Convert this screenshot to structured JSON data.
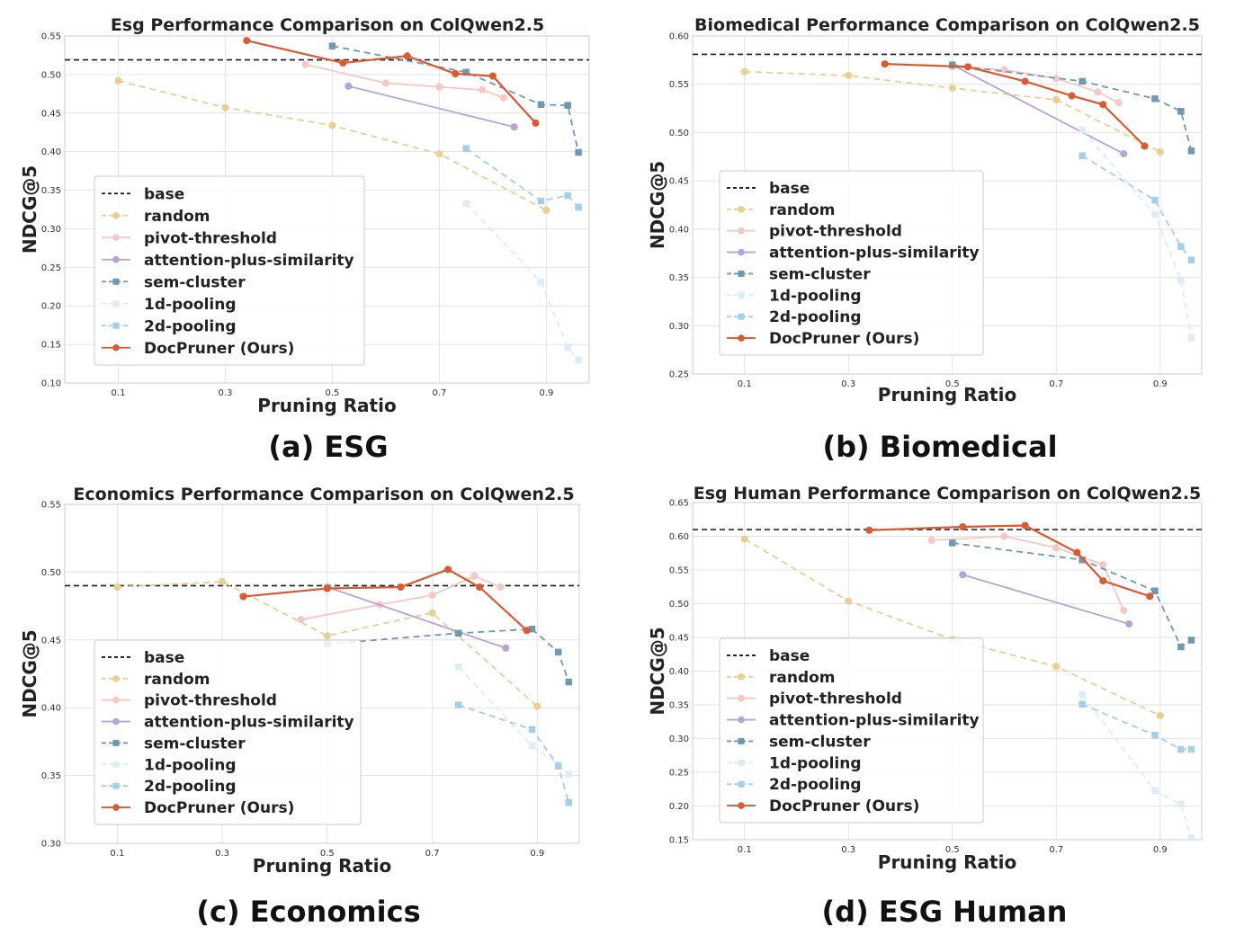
{
  "styles": {
    "base": {
      "color": "#1a1a1a",
      "dash": "6,4",
      "marker": "none"
    },
    "random": {
      "color": "#e8cf94",
      "dash": "7,5",
      "marker": "circle"
    },
    "pivot-threshold": {
      "color": "#f6c7c4",
      "dash": "",
      "marker": "circle"
    },
    "attention-plus-similarity": {
      "color": "#b8a4d4",
      "dash": "",
      "marker": "circle"
    },
    "sem-cluster": {
      "color": "#7098ae",
      "dash": "7,5",
      "marker": "square"
    },
    "1d-pooling": {
      "color": "#dcedf8",
      "dash": "7,5",
      "marker": "square"
    },
    "2d-pooling": {
      "color": "#a5cfe9",
      "dash": "7,5",
      "marker": "square"
    },
    "DocPruner (Ours)": {
      "color": "#d95a33",
      "dash": "",
      "marker": "circle"
    }
  },
  "captions": [
    "(a) ESG",
    "(b) Biomedical",
    "(c) Economics",
    "(d) ESG Human"
  ],
  "chart_data": [
    {
      "type": "line",
      "title": "Esg Performance Comparison on ColQwen2.5",
      "xlabel": "Pruning Ratio",
      "ylabel": "NDCG@5",
      "xlim": [
        0.0,
        0.98
      ],
      "ylim": [
        0.1,
        0.55
      ],
      "xticks": [
        0.1,
        0.3,
        0.5,
        0.7,
        0.9
      ],
      "yticks": [
        0.1,
        0.15,
        0.2,
        0.25,
        0.3,
        0.35,
        0.4,
        0.45,
        0.5,
        0.55
      ],
      "legend": "lower-left",
      "base": 0.519,
      "series": [
        {
          "name": "random",
          "x": [
            0.1,
            0.3,
            0.5,
            0.7,
            0.9
          ],
          "y": [
            0.492,
            0.457,
            0.434,
            0.397,
            0.324
          ]
        },
        {
          "name": "pivot-threshold",
          "x": [
            0.45,
            0.6,
            0.7,
            0.78,
            0.82
          ],
          "y": [
            0.513,
            0.489,
            0.484,
            0.48,
            0.47
          ]
        },
        {
          "name": "attention-plus-similarity",
          "x": [
            0.53,
            0.84
          ],
          "y": [
            0.485,
            0.432
          ]
        },
        {
          "name": "sem-cluster",
          "x": [
            0.5,
            0.75,
            0.89,
            0.94,
            0.96
          ],
          "y": [
            0.537,
            0.503,
            0.461,
            0.46,
            0.399
          ]
        },
        {
          "name": "1d-pooling",
          "x": [
            0.75,
            0.89,
            0.94,
            0.96
          ],
          "y": [
            0.333,
            0.231,
            0.146,
            0.13
          ]
        },
        {
          "name": "2d-pooling",
          "x": [
            0.75,
            0.89,
            0.94,
            0.96
          ],
          "y": [
            0.404,
            0.336,
            0.343,
            0.328
          ]
        },
        {
          "name": "DocPruner (Ours)",
          "x": [
            0.34,
            0.52,
            0.64,
            0.73,
            0.8,
            0.88
          ],
          "y": [
            0.544,
            0.515,
            0.524,
            0.501,
            0.498,
            0.437
          ]
        }
      ]
    },
    {
      "type": "line",
      "title": "Biomedical Performance Comparison on ColQwen2.5",
      "xlabel": "Pruning Ratio",
      "ylabel": "NDCG@5",
      "xlim": [
        0.0,
        0.98
      ],
      "ylim": [
        0.25,
        0.6
      ],
      "xticks": [
        0.1,
        0.3,
        0.5,
        0.7,
        0.9
      ],
      "yticks": [
        0.25,
        0.3,
        0.35,
        0.4,
        0.45,
        0.5,
        0.55,
        0.6
      ],
      "legend": "lower-left",
      "base": 0.581,
      "series": [
        {
          "name": "random",
          "x": [
            0.1,
            0.3,
            0.5,
            0.7,
            0.9
          ],
          "y": [
            0.563,
            0.559,
            0.546,
            0.534,
            0.48
          ]
        },
        {
          "name": "pivot-threshold",
          "x": [
            0.5,
            0.6,
            0.7,
            0.78,
            0.82
          ],
          "y": [
            0.568,
            0.565,
            0.556,
            0.542,
            0.531
          ]
        },
        {
          "name": "attention-plus-similarity",
          "x": [
            0.5,
            0.83
          ],
          "y": [
            0.57,
            0.478
          ]
        },
        {
          "name": "sem-cluster",
          "x": [
            0.5,
            0.75,
            0.89,
            0.94,
            0.96
          ],
          "y": [
            0.57,
            0.553,
            0.535,
            0.522,
            0.481
          ]
        },
        {
          "name": "1d-pooling",
          "x": [
            0.75,
            0.89,
            0.94,
            0.96
          ],
          "y": [
            0.503,
            0.415,
            0.347,
            0.288
          ]
        },
        {
          "name": "2d-pooling",
          "x": [
            0.75,
            0.89,
            0.94,
            0.96
          ],
          "y": [
            0.476,
            0.43,
            0.382,
            0.368
          ]
        },
        {
          "name": "DocPruner (Ours)",
          "x": [
            0.37,
            0.53,
            0.64,
            0.73,
            0.79,
            0.87
          ],
          "y": [
            0.571,
            0.568,
            0.553,
            0.538,
            0.529,
            0.486
          ]
        }
      ]
    },
    {
      "type": "line",
      "title": "Economics Performance Comparison on ColQwen2.5",
      "xlabel": "Pruning Ratio",
      "ylabel": "NDCG@5",
      "xlim": [
        0.0,
        0.98
      ],
      "ylim": [
        0.3,
        0.55
      ],
      "xticks": [
        0.1,
        0.3,
        0.5,
        0.7,
        0.9
      ],
      "yticks": [
        0.3,
        0.35,
        0.4,
        0.45,
        0.5,
        0.55
      ],
      "legend": "lower-left",
      "base": 0.49,
      "series": [
        {
          "name": "random",
          "x": [
            0.1,
            0.3,
            0.5,
            0.7,
            0.9
          ],
          "y": [
            0.489,
            0.493,
            0.453,
            0.47,
            0.401
          ]
        },
        {
          "name": "pivot-threshold",
          "x": [
            0.45,
            0.6,
            0.7,
            0.78,
            0.83
          ],
          "y": [
            0.465,
            0.476,
            0.483,
            0.497,
            0.489
          ]
        },
        {
          "name": "attention-plus-similarity",
          "x": [
            0.5,
            0.84
          ],
          "y": [
            0.489,
            0.444
          ]
        },
        {
          "name": "sem-cluster",
          "x": [
            0.5,
            0.75,
            0.89,
            0.94,
            0.96
          ],
          "y": [
            0.447,
            0.455,
            0.458,
            0.441,
            0.419
          ]
        },
        {
          "name": "1d-pooling",
          "x": [
            0.75,
            0.89,
            0.94,
            0.96
          ],
          "y": [
            0.43,
            0.372,
            0.358,
            0.351
          ]
        },
        {
          "name": "2d-pooling",
          "x": [
            0.75,
            0.89,
            0.94,
            0.96
          ],
          "y": [
            0.402,
            0.384,
            0.357,
            0.33
          ]
        },
        {
          "name": "DocPruner (Ours)",
          "x": [
            0.34,
            0.5,
            0.64,
            0.73,
            0.79,
            0.88
          ],
          "y": [
            0.482,
            0.488,
            0.489,
            0.502,
            0.489,
            0.457
          ]
        }
      ]
    },
    {
      "type": "line",
      "title": "Esg Human Performance Comparison on ColQwen2.5",
      "xlabel": "Pruning Ratio",
      "ylabel": "NDCG@5",
      "xlim": [
        0.0,
        0.98
      ],
      "ylim": [
        0.15,
        0.65
      ],
      "xticks": [
        0.1,
        0.3,
        0.5,
        0.7,
        0.9
      ],
      "yticks": [
        0.15,
        0.2,
        0.25,
        0.3,
        0.35,
        0.4,
        0.45,
        0.5,
        0.55,
        0.6,
        0.65
      ],
      "legend": "lower-left",
      "base": 0.61,
      "series": [
        {
          "name": "random",
          "x": [
            0.1,
            0.3,
            0.5,
            0.7,
            0.9
          ],
          "y": [
            0.596,
            0.504,
            0.447,
            0.407,
            0.334
          ]
        },
        {
          "name": "pivot-threshold",
          "x": [
            0.46,
            0.6,
            0.7,
            0.79,
            0.83
          ],
          "y": [
            0.594,
            0.6,
            0.583,
            0.558,
            0.49
          ]
        },
        {
          "name": "attention-plus-similarity",
          "x": [
            0.52,
            0.84
          ],
          "y": [
            0.543,
            0.47
          ]
        },
        {
          "name": "sem-cluster",
          "x": [
            0.5,
            0.75,
            0.89,
            0.94,
            0.96
          ],
          "y": [
            0.59,
            0.565,
            0.519,
            0.436,
            0.446
          ]
        },
        {
          "name": "1d-pooling",
          "x": [
            0.75,
            0.89,
            0.94,
            0.96
          ],
          "y": [
            0.365,
            0.223,
            0.203,
            0.153
          ]
        },
        {
          "name": "2d-pooling",
          "x": [
            0.75,
            0.89,
            0.94,
            0.96
          ],
          "y": [
            0.351,
            0.305,
            0.284,
            0.284
          ]
        },
        {
          "name": "DocPruner (Ours)",
          "x": [
            0.34,
            0.52,
            0.64,
            0.74,
            0.79,
            0.88
          ],
          "y": [
            0.609,
            0.614,
            0.616,
            0.576,
            0.534,
            0.511
          ]
        }
      ]
    }
  ]
}
